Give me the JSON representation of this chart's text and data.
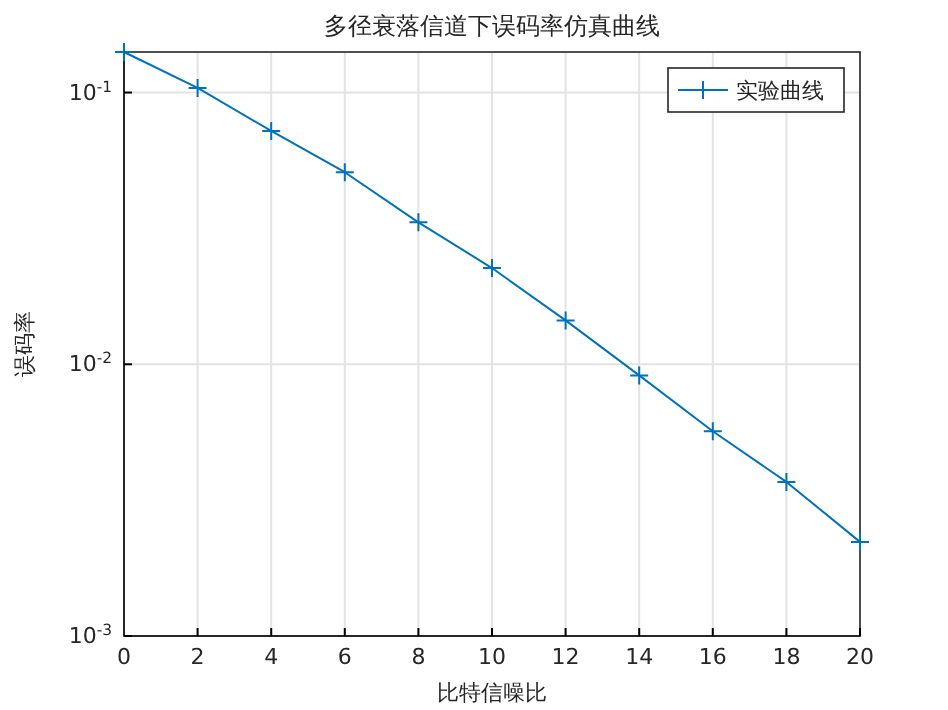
{
  "chart_data": {
    "type": "line",
    "title": "多径衰落信道下误码率仿真曲线",
    "xlabel": "比特信噪比",
    "ylabel": "误码率",
    "x": [
      0,
      2,
      4,
      6,
      8,
      10,
      12,
      14,
      16,
      18,
      20
    ],
    "series": [
      {
        "name": "实验曲线",
        "color": "#0072bd",
        "values": [
          0.141,
          0.104,
          0.0722,
          0.0509,
          0.0333,
          0.0226,
          0.0145,
          0.0091,
          0.00567,
          0.00369,
          0.00222
        ]
      }
    ],
    "xlim": [
      0,
      20
    ],
    "xticks": [
      0,
      2,
      4,
      6,
      8,
      10,
      12,
      14,
      16,
      18,
      20
    ],
    "ylim": [
      0.001,
      0.141
    ],
    "yticks": [
      {
        "value": 0.001,
        "label": "10$^{-3}$"
      },
      {
        "value": 0.01,
        "label": "10$^{-2}$"
      },
      {
        "value": 0.1,
        "label": "10$^{-1}$"
      }
    ],
    "log": "y",
    "grid": true,
    "legend": "top right",
    "marker": "cross",
    "line_style": "solid"
  }
}
